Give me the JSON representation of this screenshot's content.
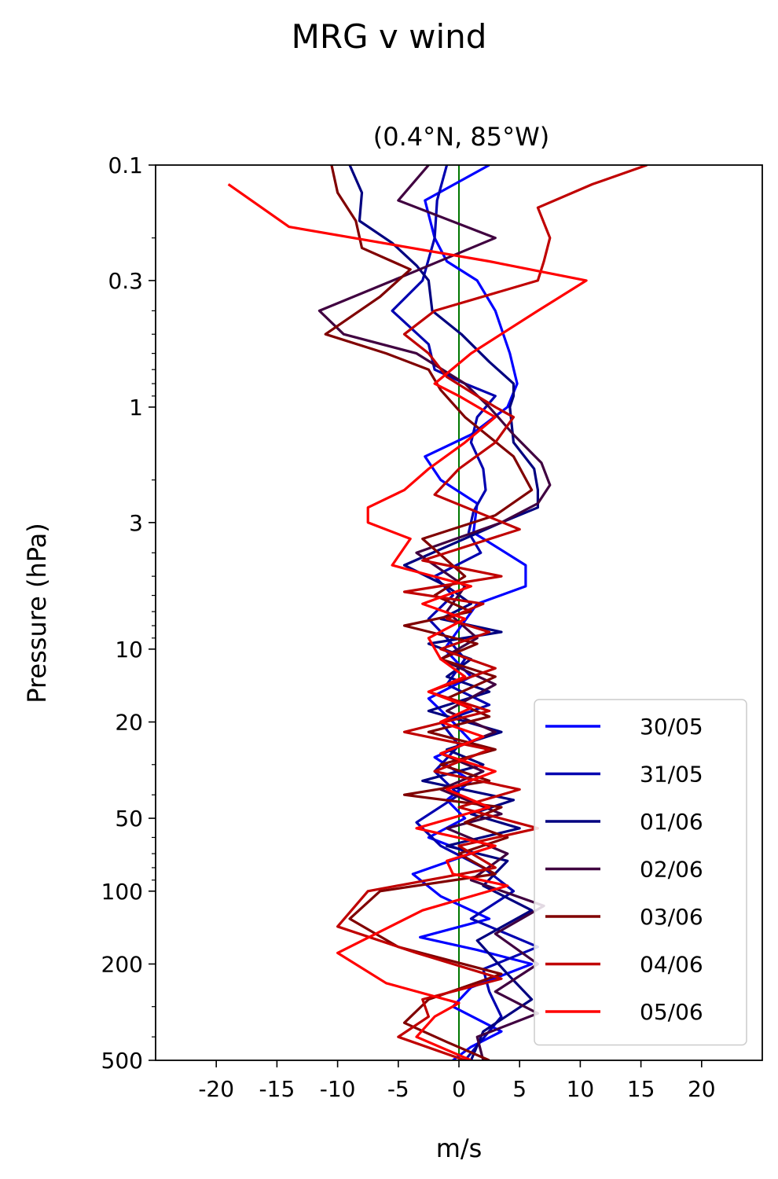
{
  "figure": {
    "suptitle": "MRG v wind"
  },
  "chart_data": {
    "type": "line",
    "title": "(0.4°N, 85°W)",
    "xlabel": "m/s",
    "ylabel": "Pressure (hPa)",
    "xlim": [
      -25,
      25
    ],
    "ylim": [
      500,
      0.1
    ],
    "yscale": "log",
    "xticks": [
      -20,
      -15,
      -10,
      -5,
      0,
      5,
      10,
      15,
      20
    ],
    "xtick_labels": [
      "-20",
      "-15",
      "-10",
      "-5",
      "0",
      "5",
      "10",
      "15",
      "20"
    ],
    "yticks": [
      0.1,
      0.3,
      1,
      3,
      10,
      20,
      50,
      100,
      200,
      500
    ],
    "ytick_labels": [
      "0.1",
      "0.3",
      "1",
      "3",
      "10",
      "20",
      "50",
      "100",
      "200",
      "500"
    ],
    "zero_line_color": "#007700",
    "legend_position": "lower-right",
    "series": [
      {
        "name": "30/05",
        "color": "#0000ff",
        "x": [
          2.5,
          -2.8,
          -2.0,
          -1.0,
          1.5,
          3.0,
          4.2,
          4.8,
          4.0,
          1.0,
          -2.8,
          -1.5,
          1.5,
          1.2,
          5.5,
          5.5,
          1.5,
          0.2,
          -1.2,
          1.0,
          -2.5,
          -0.5,
          1.0,
          -2.0,
          1.0,
          -1.0,
          0.5,
          -2.5,
          1.0,
          -3.8,
          -1.5,
          2.5,
          -3.2,
          1.5,
          6.0,
          1.0,
          -0.5,
          3.5,
          1.0,
          -0.5
        ],
        "p": [
          0.1,
          0.14,
          0.2,
          0.25,
          0.3,
          0.4,
          0.6,
          0.8,
          1.0,
          1.3,
          1.6,
          2.0,
          2.5,
          3.3,
          4.5,
          5.5,
          6.5,
          8.0,
          10.0,
          13.0,
          16.0,
          20.0,
          24.0,
          28.0,
          35.0,
          42.0,
          50.0,
          60.0,
          70.0,
          85.0,
          105.0,
          130.0,
          155.0,
          175.0,
          200.0,
          250.0,
          300.0,
          380.0,
          440.0,
          500.0
        ]
      },
      {
        "name": "31/05",
        "color": "#0000b0",
        "x": [
          -1.0,
          -1.8,
          -2.0,
          -3.0,
          -5.5,
          -2.5,
          -2.0,
          0.5,
          3.0,
          1.5,
          1.0,
          2.0,
          2.2,
          1.2,
          0.8,
          1.8,
          -2.0,
          -0.5,
          -2.5,
          -1.0,
          0.5,
          -1.0,
          2.5,
          -1.5,
          0.0,
          -2.0,
          0.0,
          -3.5,
          -1.5,
          2.0,
          4.5,
          1.0,
          6.5,
          2.0,
          2.5,
          3.5,
          0.5
        ],
        "p": [
          0.1,
          0.14,
          0.2,
          0.3,
          0.4,
          0.55,
          0.7,
          0.8,
          0.9,
          1.1,
          1.4,
          1.8,
          2.2,
          2.7,
          3.3,
          4.0,
          5.0,
          6.0,
          7.5,
          9.0,
          11.0,
          14.0,
          17.0,
          20.0,
          25.0,
          32.0,
          40.0,
          52.0,
          65.0,
          80.0,
          100.0,
          130.0,
          170.0,
          210.0,
          260.0,
          330.0,
          500.0
        ]
      },
      {
        "name": "01/06",
        "color": "#000080",
        "x": [
          -9.0,
          -8.0,
          -8.2,
          -5.5,
          -3.5,
          -2.5,
          -2.2,
          0.2,
          2.5,
          4.5,
          4.5,
          4.2,
          4.5,
          6.2,
          6.5,
          6.5,
          3.5,
          -4.5,
          -1.0,
          1.0,
          -1.5,
          3.5,
          -2.5,
          1.0,
          -1.0,
          2.5,
          -2.5,
          3.5,
          -1.0,
          2.0,
          -3.0,
          4.5,
          1.0,
          5.0,
          -1.0,
          4.0,
          2.0,
          6.0,
          1.5,
          4.0,
          6.0,
          2.0,
          1.0
        ],
        "p": [
          0.1,
          0.13,
          0.17,
          0.21,
          0.26,
          0.3,
          0.4,
          0.5,
          0.65,
          0.8,
          0.9,
          1.0,
          1.4,
          1.8,
          2.2,
          2.6,
          3.0,
          4.5,
          5.5,
          6.5,
          7.5,
          8.5,
          9.5,
          11.0,
          13.0,
          15.0,
          18.0,
          22.0,
          26.0,
          30.0,
          35.0,
          42.0,
          48.0,
          55.0,
          65.0,
          75.0,
          95.0,
          120.0,
          160.0,
          220.0,
          280.0,
          380.0,
          500.0
        ]
      },
      {
        "name": "02/06",
        "color": "#400040",
        "x": [
          -2.5,
          -5.0,
          3.0,
          -4.0,
          -11.5,
          -9.5,
          -3.5,
          0.5,
          2.5,
          4.5,
          6.8,
          7.5,
          6.5,
          3.5,
          -3.5,
          0.5,
          -1.0,
          1.5,
          -1.5,
          3.0,
          -1.0,
          3.0,
          -1.5,
          2.0,
          -1.5,
          3.5,
          -1.0,
          4.0,
          1.0,
          7.0,
          3.0,
          6.5,
          3.0,
          6.5,
          1.5,
          2.0
        ],
        "p": [
          0.1,
          0.14,
          0.2,
          0.28,
          0.4,
          0.5,
          0.6,
          0.8,
          1.0,
          1.3,
          1.7,
          2.1,
          2.5,
          3.0,
          4.0,
          5.5,
          7.0,
          9.0,
          11.0,
          14.0,
          18.0,
          22.0,
          27.0,
          32.0,
          38.0,
          48.0,
          55.0,
          70.0,
          90.0,
          115.0,
          150.0,
          200.0,
          260.0,
          320.0,
          400.0,
          500.0
        ]
      },
      {
        "name": "03/06",
        "color": "#800000",
        "x": [
          -10.5,
          -10.0,
          -8.5,
          -8.0,
          -4.0,
          -6.5,
          -11.0,
          -6.0,
          -2.5,
          -1.5,
          0.5,
          4.5,
          6.0,
          3.0,
          -3.0,
          0.5,
          -2.0,
          1.0,
          -4.5,
          1.5,
          -1.5,
          3.0,
          -1.0,
          2.5,
          -2.5,
          3.0,
          -1.5,
          2.5,
          -4.5,
          3.5,
          0.5,
          4.0,
          0.0,
          3.0,
          -6.5,
          -9.0,
          -5.0,
          3.5,
          -2.5,
          -4.5,
          -1.0,
          2.5
        ],
        "p": [
          0.1,
          0.13,
          0.17,
          0.22,
          0.27,
          0.35,
          0.5,
          0.6,
          0.7,
          0.85,
          1.1,
          1.6,
          2.2,
          2.8,
          3.5,
          5.0,
          6.0,
          7.0,
          8.0,
          9.5,
          11.0,
          13.0,
          16.0,
          19.0,
          22.0,
          26.0,
          30.0,
          35.0,
          40.0,
          45.0,
          52.0,
          60.0,
          70.0,
          85.0,
          100.0,
          130.0,
          170.0,
          220.0,
          280.0,
          350.0,
          420.0,
          500.0
        ]
      },
      {
        "name": "04/06",
        "color": "#c00000",
        "x": [
          15.5,
          11.0,
          6.5,
          7.5,
          7.0,
          6.5,
          -2.0,
          -4.5,
          -2.5,
          -1.0,
          1.5,
          3.0,
          4.5,
          3.0,
          0.0,
          -2.0,
          5.0,
          -3.0,
          3.5,
          -4.5,
          2.0,
          -1.0,
          2.5,
          -1.5,
          3.0,
          -2.5,
          2.5,
          -4.5,
          2.5,
          -2.0,
          5.0,
          0.0,
          6.5,
          0.0,
          3.0,
          -7.5,
          -10.0,
          -3.5,
          3.5,
          -3.0,
          -2.5,
          -5.0,
          0.5
        ],
        "p": [
          0.1,
          0.12,
          0.15,
          0.2,
          0.25,
          0.3,
          0.4,
          0.5,
          0.6,
          0.75,
          0.9,
          1.0,
          1.1,
          1.4,
          1.8,
          2.3,
          3.2,
          4.3,
          5.0,
          5.8,
          6.5,
          7.5,
          8.5,
          10.0,
          12.0,
          15.0,
          18.0,
          22.0,
          26.0,
          32.0,
          38.0,
          45.0,
          55.0,
          65.0,
          80.0,
          100.0,
          140.0,
          180.0,
          230.0,
          280.0,
          330.0,
          400.0,
          500.0
        ]
      },
      {
        "name": "05/06",
        "color": "#ff0000",
        "x": [
          -19.0,
          -14.0,
          2.5,
          10.5,
          6.5,
          1.0,
          -2.0,
          0.0,
          3.0,
          0.5,
          -2.5,
          -4.5,
          -7.5,
          -7.5,
          -4.0,
          -5.5,
          1.0,
          -3.0,
          0.5,
          -2.5,
          -1.5,
          0.5,
          -2.5,
          1.0,
          -1.5,
          2.0,
          -1.5,
          3.0,
          -1.0,
          2.5,
          -3.5,
          3.0,
          -1.0,
          -0.5,
          4.0,
          -3.0,
          -10.0,
          -6.0,
          0.0,
          -2.0,
          -3.5,
          1.0
        ],
        "p": [
          0.12,
          0.18,
          0.25,
          0.3,
          0.4,
          0.6,
          0.8,
          0.9,
          1.1,
          1.4,
          1.8,
          2.2,
          2.6,
          3.0,
          3.5,
          4.5,
          5.5,
          6.5,
          7.5,
          9.0,
          11.0,
          13.0,
          15.0,
          17.5,
          20.0,
          23.0,
          27.0,
          32.0,
          38.0,
          45.0,
          55.0,
          65.0,
          75.0,
          85.0,
          95.0,
          120.0,
          180.0,
          240.0,
          290.0,
          330.0,
          400.0,
          500.0
        ]
      }
    ]
  }
}
